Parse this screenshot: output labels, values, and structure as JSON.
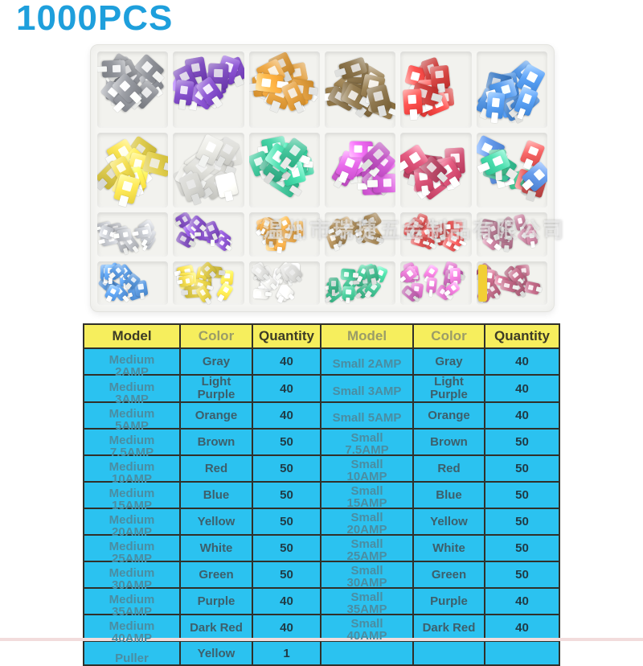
{
  "title": "1000PCS",
  "colors": {
    "title_blue": "#1E9FDC",
    "header_yellow": "#F6EE5D",
    "cell_cyan": "#2BC2F0",
    "border_dark": "#30302A",
    "bottom_strip": "#F2DCDC"
  },
  "photo": {
    "watermark": "温州市瑞捷五金制品有限公司",
    "compartments": [
      {
        "name": "gray-medium-fuses",
        "size": "medium",
        "colors": [
          "#84878E"
        ]
      },
      {
        "name": "purple-medium-fuses",
        "size": "medium",
        "colors": [
          "#7A3EC9"
        ]
      },
      {
        "name": "orange-medium-fuses",
        "size": "medium",
        "colors": [
          "#EFA02F"
        ]
      },
      {
        "name": "brown-medium-fuses",
        "size": "medium",
        "colors": [
          "#8D713F"
        ]
      },
      {
        "name": "red-medium-fuses",
        "size": "medium",
        "colors": [
          "#DD3330"
        ]
      },
      {
        "name": "blue-medium-fuses",
        "size": "medium",
        "colors": [
          "#3D86DC"
        ]
      },
      {
        "name": "yellow-medium-fuses",
        "size": "medium",
        "colors": [
          "#F1DA3E"
        ]
      },
      {
        "name": "white-medium-fuses",
        "size": "medium",
        "colors": [
          "#EAEAE4"
        ]
      },
      {
        "name": "green-medium-fuses",
        "size": "medium",
        "colors": [
          "#2EC594"
        ]
      },
      {
        "name": "magenta-medium-fuses",
        "size": "medium",
        "colors": [
          "#CF4ED2"
        ]
      },
      {
        "name": "dark-red-medium-fuses",
        "size": "medium",
        "colors": [
          "#C13A5F"
        ]
      },
      {
        "name": "mixed-medium-fuses",
        "size": "medium",
        "colors": [
          "#3EC48F",
          "#D84747",
          "#4A80D2",
          "#2EC594"
        ]
      },
      {
        "name": "gray-mini-fuses",
        "size": "mini",
        "colors": [
          "#B6B9BF"
        ]
      },
      {
        "name": "purple-mini-fuses",
        "size": "mini",
        "colors": [
          "#8448CE"
        ]
      },
      {
        "name": "orange-mini-fuses",
        "size": "mini",
        "colors": [
          "#EDA43C"
        ]
      },
      {
        "name": "brown-mini-fuses",
        "size": "mini",
        "colors": [
          "#B18B50"
        ]
      },
      {
        "name": "red-mini-fuses",
        "size": "mini",
        "colors": [
          "#DC4444"
        ]
      },
      {
        "name": "mauve-mini-fuses",
        "size": "mini",
        "colors": [
          "#BB7290"
        ]
      },
      {
        "name": "blue-mini-fuses",
        "size": "mini",
        "colors": [
          "#4A8FDC"
        ]
      },
      {
        "name": "yellow-mini-fuses",
        "size": "mini",
        "colors": [
          "#ECD43C"
        ]
      },
      {
        "name": "white-mini-fuses",
        "size": "mini",
        "colors": [
          "#EDEDEA"
        ]
      },
      {
        "name": "green-mini-fuses",
        "size": "mini",
        "colors": [
          "#37C691"
        ]
      },
      {
        "name": "pink-mini-fuses",
        "size": "mini",
        "colors": [
          "#D968C5"
        ]
      },
      {
        "name": "dark-pink-mini-fuses-with-puller",
        "size": "mini",
        "colors": [
          "#C05F80"
        ],
        "puller": true
      }
    ]
  },
  "table": {
    "headers": [
      "Model",
      "Color",
      "Quantity",
      "Model",
      "Color",
      "Quantity"
    ],
    "rows": [
      [
        "Medium 2AMP",
        "Gray",
        "40",
        "Small 2AMP",
        "Gray",
        "40"
      ],
      [
        "Medium 3AMP",
        "Light Purple",
        "40",
        "Small 3AMP",
        "Light Purple",
        "40"
      ],
      [
        "Medium 5AMP",
        "Orange",
        "40",
        "Small 5AMP",
        "Orange",
        "40"
      ],
      [
        "Medium 7.5AMP",
        "Brown",
        "50",
        "Small 7.5AMP",
        "Brown",
        "50"
      ],
      [
        "Medium 10AMP",
        "Red",
        "50",
        "Small 10AMP",
        "Red",
        "50"
      ],
      [
        "Medium 15AMP",
        "Blue",
        "50",
        "Small 15AMP",
        "Blue",
        "50"
      ],
      [
        "Medium 20AMP",
        "Yellow",
        "50",
        "Small 20AMP",
        "Yellow",
        "50"
      ],
      [
        "Medium 25AMP",
        "White",
        "50",
        "Small 25AMP",
        "White",
        "50"
      ],
      [
        "Medium 30AMP",
        "Green",
        "50",
        "Small 30AMP",
        "Green",
        "50"
      ],
      [
        "Medium 35AMP",
        "Purple",
        "40",
        "Small 35AMP",
        "Purple",
        "40"
      ],
      [
        "Medium 40AMP",
        "Dark Red",
        "40",
        "Small 40AMP",
        "Dark Red",
        "40"
      ],
      [
        "Puller",
        "Yellow",
        "1",
        "",
        "",
        ""
      ]
    ]
  }
}
